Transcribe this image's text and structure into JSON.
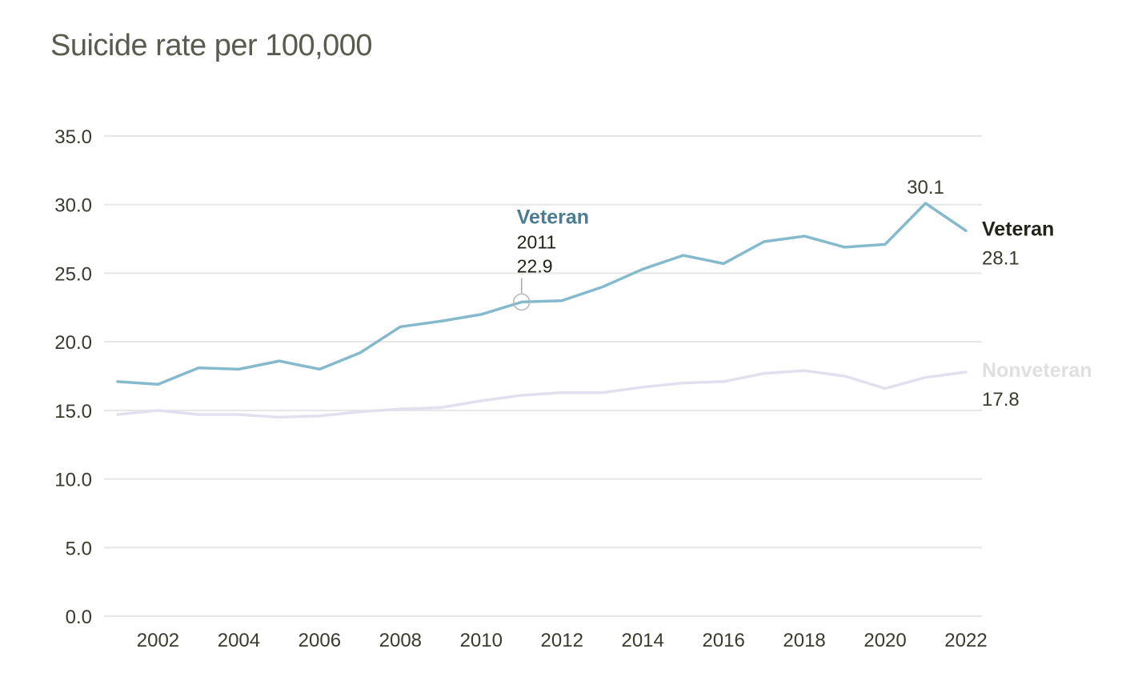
{
  "chart_data": {
    "type": "line",
    "title": "Suicide rate per 100,000",
    "xlabel": "",
    "ylabel": "",
    "ylim": [
      0,
      35
    ],
    "xlim": [
      2001,
      2022
    ],
    "grid": true,
    "y_ticks": [
      "0.0",
      "5.0",
      "10.0",
      "15.0",
      "20.0",
      "25.0",
      "30.0",
      "35.0"
    ],
    "y_tick_values": [
      0,
      5,
      10,
      15,
      20,
      25,
      30,
      35
    ],
    "x_ticks": [
      "2002",
      "2004",
      "2006",
      "2008",
      "2010",
      "2012",
      "2014",
      "2016",
      "2018",
      "2020",
      "2022"
    ],
    "x_tick_values": [
      2002,
      2004,
      2006,
      2008,
      2010,
      2012,
      2014,
      2016,
      2018,
      2020,
      2022
    ],
    "x": [
      2001,
      2002,
      2003,
      2004,
      2005,
      2006,
      2007,
      2008,
      2009,
      2010,
      2011,
      2012,
      2013,
      2014,
      2015,
      2016,
      2017,
      2018,
      2019,
      2020,
      2021,
      2022
    ],
    "series": [
      {
        "name": "Veteran",
        "color": "#85bacd",
        "label_color": "#222218",
        "value_color": "#4a7d92",
        "end_value": "28.1",
        "values": [
          17.1,
          16.9,
          18.1,
          18.0,
          18.6,
          18.0,
          19.2,
          21.1,
          21.5,
          22.0,
          22.9,
          23.0,
          24.0,
          25.3,
          26.3,
          25.7,
          27.3,
          27.7,
          26.9,
          27.1,
          30.1,
          28.1
        ]
      },
      {
        "name": "Nonveteran",
        "color": "#e2e0ee",
        "label_color": "#e0e0e0",
        "value_color": "#e2e0ee",
        "end_value": "17.8",
        "values": [
          14.7,
          15.0,
          14.7,
          14.7,
          14.5,
          14.6,
          14.9,
          15.1,
          15.2,
          15.7,
          16.1,
          16.3,
          16.3,
          16.7,
          17.0,
          17.1,
          17.7,
          17.9,
          17.5,
          16.6,
          17.4,
          17.8
        ]
      }
    ],
    "annotations": {
      "peak": {
        "series": "Veteran",
        "x": 2021,
        "label": "30.1",
        "color": "#4a7d92"
      },
      "tooltip": {
        "series": "Veteran",
        "x": 2011,
        "title": "Veteran",
        "year": "2011",
        "value": "22.9",
        "title_color": "#4a7d92"
      }
    },
    "legend": "end-of-line labels, right"
  }
}
